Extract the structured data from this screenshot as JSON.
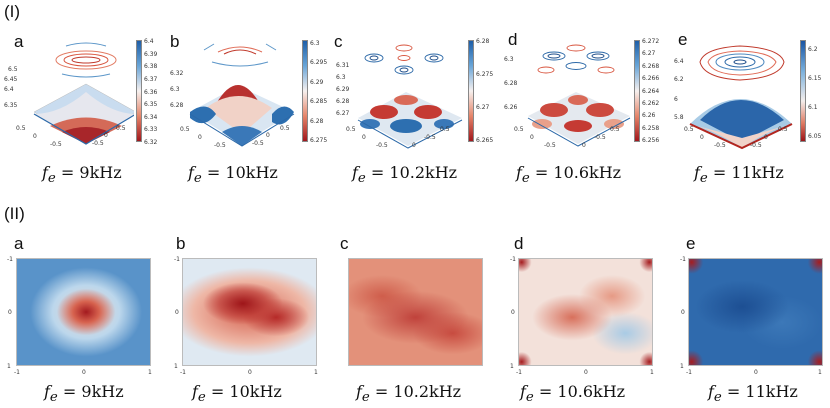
{
  "section1": {
    "label": "(I)",
    "panels": [
      {
        "letter": "a",
        "caption_var": "f",
        "caption_sub": "e",
        "caption_value": "= 9kHz",
        "yticks": [
          "6.5",
          "6.45",
          "6.4",
          "6.35"
        ],
        "xticks": [
          "0.5",
          "0",
          "-0.5",
          "-0.5",
          "0",
          "0.5"
        ],
        "cbar_ticks": [
          "6.4",
          "6.39",
          "6.38",
          "6.37",
          "6.36",
          "6.35",
          "6.34",
          "6.33",
          "6.32"
        ]
      },
      {
        "letter": "b",
        "caption_var": "f",
        "caption_sub": "e",
        "caption_value": "= 10kHz",
        "yticks": [
          "6.32",
          "6.3",
          "6.28"
        ],
        "xticks": [
          "0.5",
          "0",
          "-0.5",
          "-0.5",
          "0",
          "0.5"
        ],
        "cbar_ticks": [
          "6.3",
          "6.295",
          "6.29",
          "6.285",
          "6.28",
          "6.275"
        ]
      },
      {
        "letter": "c",
        "caption_var": "f",
        "caption_sub": "e",
        "caption_value": "= 10.2kHz",
        "yticks": [
          "6.31",
          "6.3",
          "6.29",
          "6.28",
          "6.27"
        ],
        "xticks": [
          "0.5",
          "0",
          "-0.5",
          "0",
          "-0.5",
          "0.5"
        ],
        "cbar_ticks": [
          "6.28",
          "6.275",
          "6.27",
          "6.265"
        ]
      },
      {
        "letter": "d",
        "caption_var": "f",
        "caption_sub": "e",
        "caption_value": "= 10.6kHz",
        "yticks": [
          "6.3",
          "6.28",
          "6.26"
        ],
        "xticks": [
          "0.5",
          "0",
          "-0.5",
          "0",
          "-0.5",
          "0.5"
        ],
        "cbar_ticks": [
          "6.272",
          "6.27",
          "6.268",
          "6.266",
          "6.264",
          "6.262",
          "6.26",
          "6.258",
          "6.256"
        ]
      },
      {
        "letter": "e",
        "caption_var": "f",
        "caption_sub": "e",
        "caption_value": "= 11kHz",
        "yticks": [
          "6.4",
          "6.2",
          "6",
          "5.8"
        ],
        "xticks": [
          "0.5",
          "0",
          "-0.5",
          "-0.5",
          "0",
          "0.5"
        ],
        "cbar_ticks": [
          "6.2",
          "6.15",
          "6.1",
          "6.05"
        ]
      }
    ]
  },
  "section2": {
    "label": "(II)",
    "panels": [
      {
        "letter": "a",
        "caption_var": "f",
        "caption_sub": "e",
        "caption_value": "= 9kHz",
        "pattern": "center-hot",
        "axis": [
          "-1",
          "0",
          "1",
          "-1",
          "0",
          "1"
        ]
      },
      {
        "letter": "b",
        "caption_var": "f",
        "caption_sub": "e",
        "caption_value": "= 10kHz",
        "pattern": "broad-hot",
        "axis": [
          "-1",
          "0",
          "1",
          "-1",
          "0",
          "1"
        ]
      },
      {
        "letter": "c",
        "caption_var": "f",
        "caption_sub": "e",
        "caption_value": "= 10.2kHz",
        "pattern": "uniform-warm",
        "axis": []
      },
      {
        "letter": "d",
        "caption_var": "f",
        "caption_sub": "e",
        "caption_value": "= 10.6kHz",
        "pattern": "mixed",
        "axis": [
          "-1",
          "0",
          "1",
          "-1",
          "0",
          "1"
        ]
      },
      {
        "letter": "e",
        "caption_var": "f",
        "caption_sub": "e",
        "caption_value": "= 11kHz",
        "pattern": "cold-corners-hot",
        "axis": [
          "-1",
          "0",
          "1",
          "-1",
          "0",
          "1"
        ]
      }
    ]
  },
  "colors": {
    "hot": "#a1171c",
    "warm": "#e08a6e",
    "neutral": "#f6f1ef",
    "cool": "#7cb2dc",
    "cold": "#1f5fa8"
  }
}
